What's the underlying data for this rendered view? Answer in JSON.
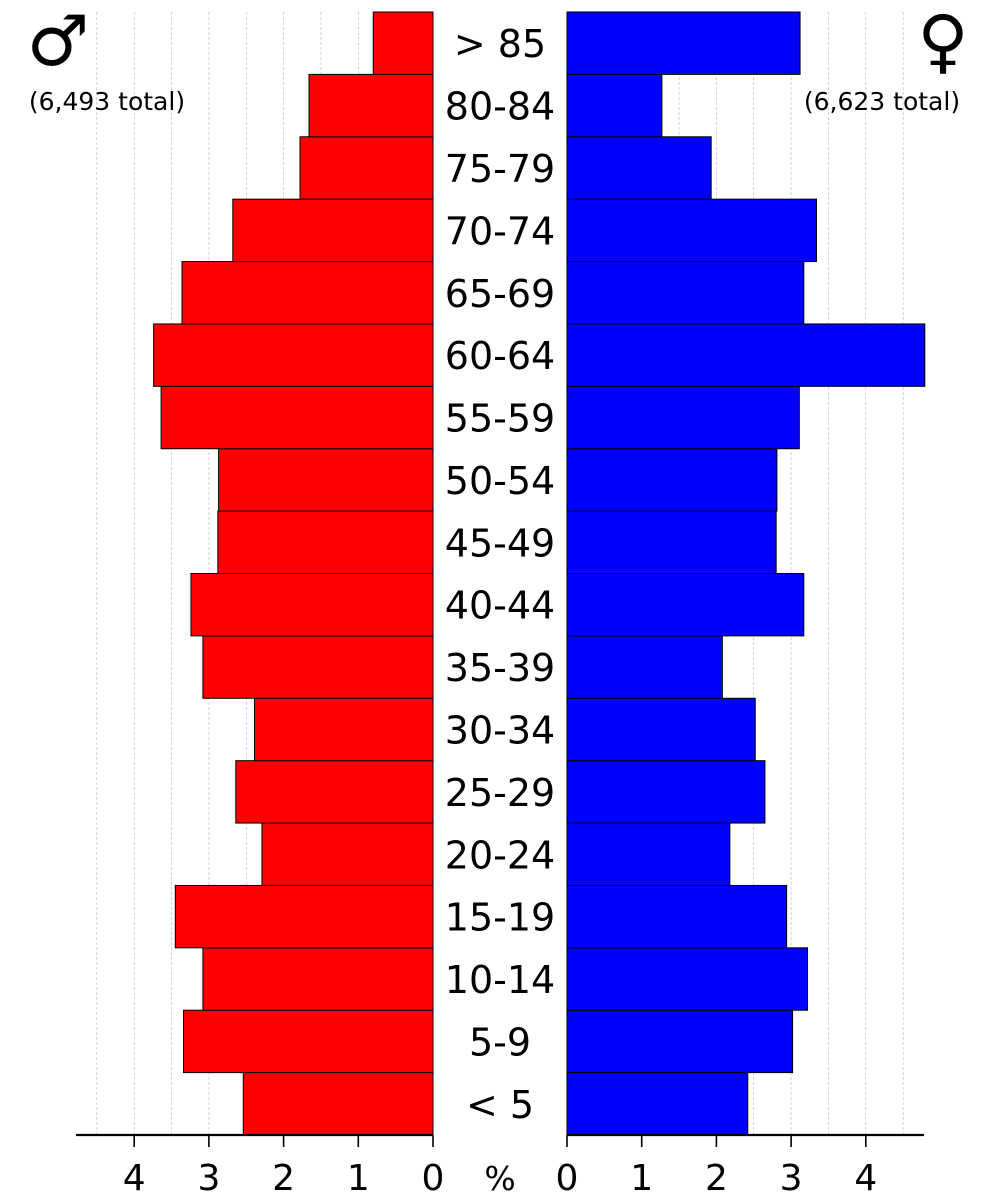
{
  "chart_data": {
    "type": "bar",
    "orientation": "horizontal",
    "layout": "population-pyramid",
    "categories": [
      "< 5",
      "5-9",
      "10-14",
      "15-19",
      "20-24",
      "25-29",
      "30-34",
      "35-39",
      "40-44",
      "45-49",
      "50-54",
      "55-59",
      "60-64",
      "65-69",
      "70-74",
      "75-79",
      "80-84",
      "> 85"
    ],
    "series": [
      {
        "side": "left",
        "symbol": "♂",
        "total_label": "(6,493 total)",
        "color": "#ff0000",
        "values": [
          2.54,
          3.34,
          3.08,
          3.45,
          2.29,
          2.64,
          2.39,
          3.08,
          3.24,
          2.88,
          2.87,
          3.64,
          3.74,
          3.36,
          2.68,
          1.78,
          1.66,
          0.8
        ]
      },
      {
        "side": "right",
        "symbol": "♀",
        "total_label": "(6,623 total)",
        "color": "#0000ff",
        "values": [
          2.42,
          3.02,
          3.22,
          2.94,
          2.18,
          2.65,
          2.52,
          2.08,
          3.17,
          2.8,
          2.81,
          3.11,
          4.79,
          3.17,
          3.34,
          1.93,
          1.27,
          3.12
        ]
      }
    ],
    "x_axis": {
      "unit_label": "%",
      "ticks": [
        0,
        1,
        2,
        3,
        4
      ],
      "tick_labels": [
        "0",
        "1",
        "2",
        "3",
        "4"
      ],
      "range": [
        0,
        4.78
      ]
    },
    "grid": "vertical dashed"
  }
}
